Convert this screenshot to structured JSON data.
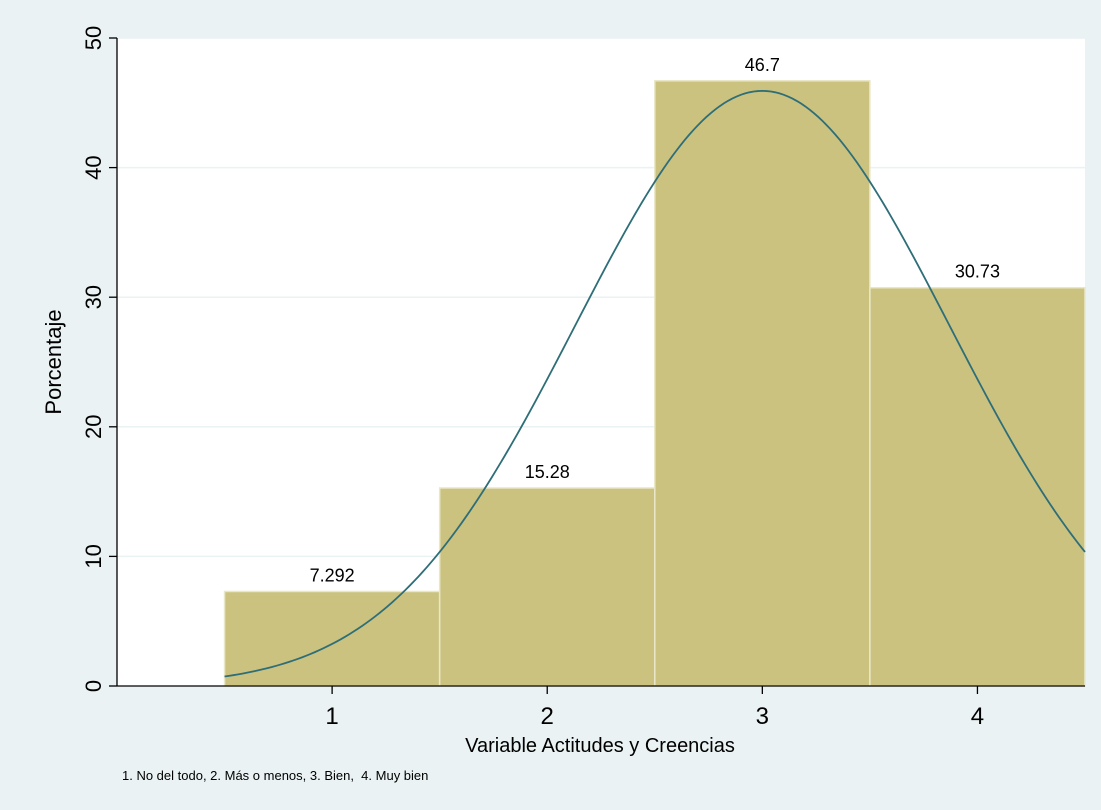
{
  "chart_data": {
    "type": "bar",
    "categories": [
      "1",
      "2",
      "3",
      "4"
    ],
    "values": [
      7.292,
      15.28,
      46.7,
      30.73
    ],
    "data_labels": [
      "7.292",
      "15.28",
      "46.7",
      "30.73"
    ],
    "xlabel": "Variable Actitudes y Creencias",
    "ylabel": "Porcentaje",
    "ylim": [
      0,
      50
    ],
    "xlim": [
      0,
      4.5
    ],
    "yticks": [
      0,
      10,
      20,
      30,
      40,
      50
    ],
    "xticks": [
      1,
      2,
      3,
      4
    ],
    "bin_width": 1,
    "grid": true,
    "normal_curve": {
      "mean": 3.0,
      "sd": 0.8688,
      "scale": 100
    },
    "note": "1. No del todo, 2. Más o menos, 3. Bien,  4. Muy bien",
    "colors": {
      "bar_fill": "#CBC27F",
      "bar_edge": "#EAE7C8",
      "curve": "#2E6E78",
      "outer_bg": "#EAF2F3",
      "plot_bg": "#FFFFFF",
      "grid": "#EAF2F3"
    }
  }
}
